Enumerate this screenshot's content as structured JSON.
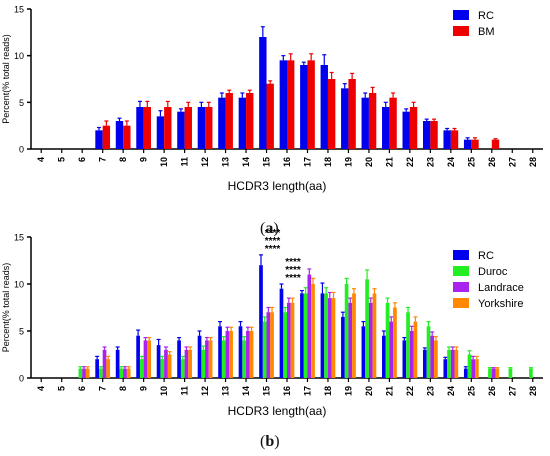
{
  "chart_data": [
    {
      "type": "bar",
      "panel_label": "a",
      "ylabel": "Percent(% total reads)",
      "xlabel": "HCDR3 length(aa)",
      "categories": [
        "4",
        "5",
        "6",
        "7",
        "8",
        "9",
        "10",
        "11",
        "12",
        "13",
        "14",
        "15",
        "16",
        "17",
        "18",
        "19",
        "20",
        "21",
        "22",
        "23",
        "24",
        "25",
        "26",
        "27",
        "28"
      ],
      "yticks": [
        "0",
        "5",
        "10",
        "15"
      ],
      "ylim": [
        0,
        15
      ],
      "legend_position": "top-right",
      "series": [
        {
          "name": "RC",
          "color": "#0000ee",
          "values": [
            0,
            0,
            0,
            2,
            3,
            4.5,
            3.5,
            4,
            4.5,
            5.5,
            5.5,
            12,
            9.5,
            9,
            9,
            6.5,
            5.5,
            4.5,
            4,
            3,
            2,
            1,
            0,
            0,
            0
          ],
          "errors": [
            0,
            0,
            0,
            0.3,
            0.3,
            0.6,
            0.6,
            0.3,
            0.5,
            0.5,
            0.5,
            1.1,
            0.5,
            0.3,
            1.1,
            0.5,
            0.5,
            0.5,
            0.3,
            0.2,
            0.2,
            0.2,
            0,
            0,
            0
          ]
        },
        {
          "name": "BM",
          "color": "#ee0000",
          "values": [
            0,
            0,
            0,
            2.5,
            2.5,
            4.5,
            4.5,
            4.5,
            4.5,
            6,
            6,
            7,
            9.5,
            9.5,
            7.5,
            7.5,
            6,
            5.5,
            4.5,
            3,
            2,
            1,
            1,
            0,
            0
          ],
          "errors": [
            0,
            0,
            0,
            0.5,
            0.5,
            0.6,
            0.6,
            0.5,
            0.5,
            0.3,
            0.3,
            0.3,
            0.7,
            0.7,
            0.7,
            0.6,
            0.6,
            0.5,
            0.5,
            0.2,
            0.2,
            0.2,
            0.1,
            0,
            0
          ]
        }
      ]
    },
    {
      "type": "bar",
      "panel_label": "b",
      "ylabel": "Percent(% total reads)",
      "xlabel": "HCDR3 length(aa)",
      "categories": [
        "4",
        "5",
        "6",
        "7",
        "8",
        "9",
        "10",
        "11",
        "12",
        "13",
        "14",
        "15",
        "16",
        "17",
        "18",
        "19",
        "20",
        "21",
        "22",
        "23",
        "24",
        "25",
        "26",
        "27",
        "28"
      ],
      "yticks": [
        "0",
        "5",
        "10",
        "15"
      ],
      "ylim": [
        0,
        15
      ],
      "legend_position": "top-right",
      "annotations": [
        {
          "category": "15",
          "lines": [
            "****",
            "****",
            "****"
          ]
        },
        {
          "category": "16",
          "lines": [
            "****",
            "****",
            "****"
          ]
        }
      ],
      "series": [
        {
          "name": "RC",
          "color": "#0000ee",
          "values": [
            0,
            0,
            0,
            2,
            3,
            4.5,
            3.5,
            4,
            4.5,
            5.5,
            5.5,
            12,
            9.5,
            9,
            9,
            6.5,
            5.5,
            4.5,
            4,
            3,
            2,
            1,
            0,
            0,
            0
          ],
          "errors": [
            0,
            0,
            0,
            0.3,
            0.3,
            0.6,
            0.6,
            0.3,
            0.5,
            0.5,
            0.5,
            1.1,
            0.5,
            0.3,
            1.1,
            0.5,
            0.5,
            0.5,
            0.3,
            0.2,
            0.2,
            0.2,
            0,
            0,
            0
          ]
        },
        {
          "name": "Duroc",
          "color": "#22ee22",
          "values": [
            0,
            0,
            1,
            1,
            1,
            2,
            2,
            2,
            3,
            4,
            4,
            6,
            7,
            9,
            9,
            10,
            10.5,
            8,
            7,
            5.5,
            3,
            2.5,
            1,
            1,
            1
          ],
          "errors": [
            0,
            0,
            0.2,
            0.2,
            0.2,
            0.3,
            0.3,
            0.3,
            0.4,
            0.4,
            0.4,
            0.5,
            0.5,
            0.6,
            0.6,
            0.6,
            1.0,
            0.5,
            0.5,
            0.5,
            0.3,
            0.4,
            0.1,
            0.1,
            0.1
          ]
        },
        {
          "name": "Landrace",
          "color": "#aa22ee",
          "values": [
            0,
            0,
            1,
            3,
            1,
            4,
            3,
            3,
            4,
            5,
            5,
            7,
            8,
            11,
            8.5,
            8,
            8,
            6,
            5,
            4.5,
            3,
            2,
            1,
            0,
            0
          ],
          "errors": [
            0,
            0,
            0.2,
            0.3,
            0.2,
            0.3,
            0.3,
            0.3,
            0.3,
            0.4,
            0.4,
            0.5,
            0.5,
            0.6,
            0.6,
            0.5,
            0.5,
            0.5,
            0.5,
            0.4,
            0.3,
            0.3,
            0.1,
            0,
            0
          ]
        },
        {
          "name": "Yorkshire",
          "color": "#ff8800",
          "values": [
            0,
            0,
            1,
            2,
            1,
            4,
            2.5,
            3,
            4,
            5,
            5,
            7,
            8,
            10,
            8.5,
            9,
            9,
            7.5,
            6,
            4,
            3,
            2,
            1,
            0,
            0
          ],
          "errors": [
            0,
            0,
            0.2,
            0.3,
            0.2,
            0.3,
            0.3,
            0.3,
            0.3,
            0.4,
            0.4,
            0.5,
            0.5,
            0.6,
            0.6,
            0.5,
            0.5,
            0.5,
            0.5,
            0.4,
            0.3,
            0.3,
            0.1,
            0,
            0
          ]
        }
      ]
    }
  ]
}
